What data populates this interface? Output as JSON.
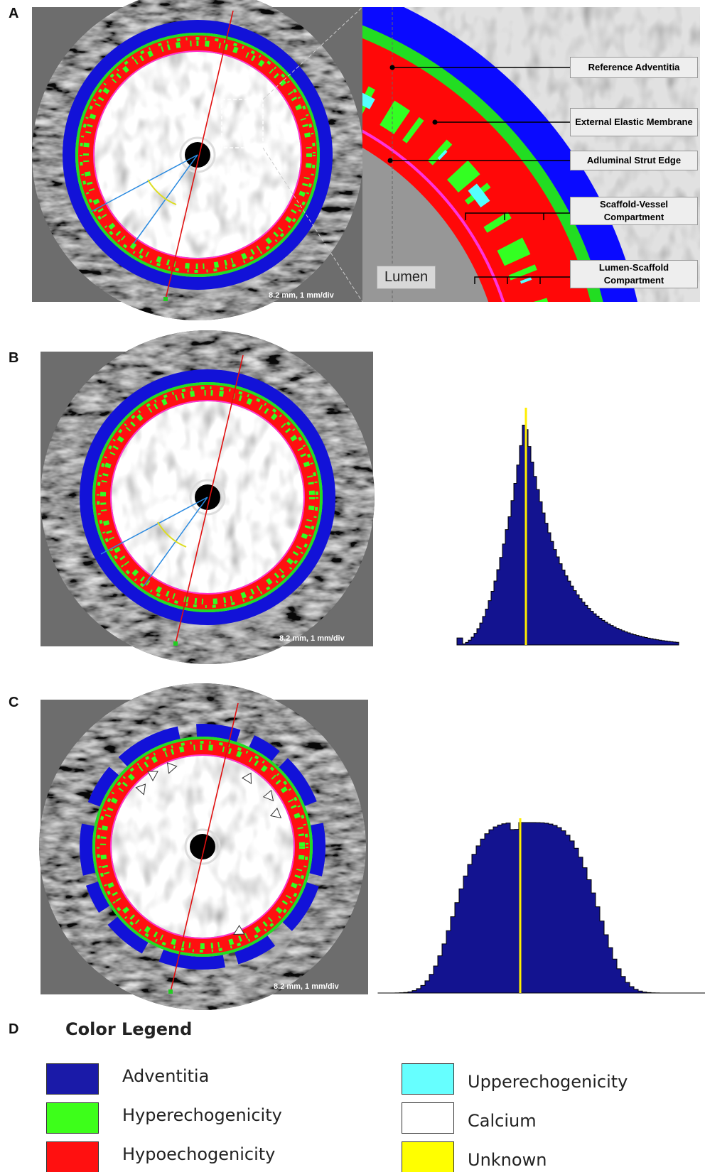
{
  "panels": [
    {
      "label": "A",
      "scale_text": "8.2 mm, 1 mm/div",
      "annotations": [
        "Reference Adventitia",
        "External Elastic Membrane",
        "Adluminal Strut Edge",
        "Scaffold-Vessel Compartment",
        "Lumen-Scaffold Compartment"
      ],
      "lumen_label": "Lumen"
    },
    {
      "label": "B",
      "scale_text": "8.2 mm, 1 mm/div"
    },
    {
      "label": "C",
      "scale_text": "8.2 mm, 1 mm/div"
    }
  ],
  "legend": {
    "label": "D",
    "title": "Color Legend",
    "items": [
      {
        "name": "Adventitia",
        "color": "#1a1aa8"
      },
      {
        "name": "Hyperechogenicity",
        "color": "#3dff1a"
      },
      {
        "name": "Hypoechogenicity",
        "color": "#ff1010"
      },
      {
        "name": "Upperechogenicity",
        "color": "#66ffff"
      },
      {
        "name": "Calcium",
        "color": "#ffffff"
      },
      {
        "name": "Unknown",
        "color": "#ffff00"
      }
    ]
  }
}
